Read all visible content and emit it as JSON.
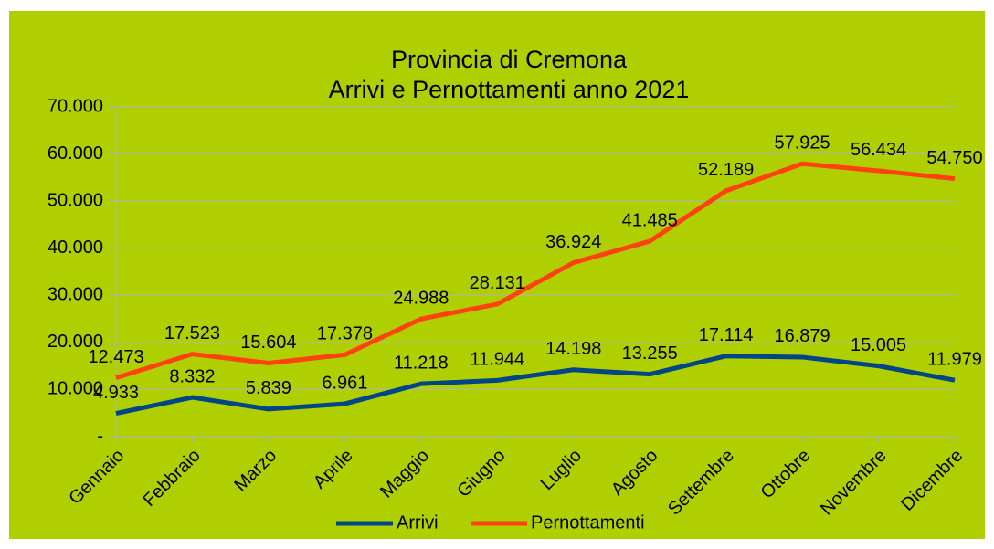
{
  "chart_data": {
    "type": "line",
    "title": "Provincia di Cremona",
    "subtitle": "Arrivi e Pernottamenti anno 2021",
    "categories": [
      "Gennaio",
      "Febbraio",
      "Marzo",
      "Aprile",
      "Maggio",
      "Giugno",
      "Luglio",
      "Agosto",
      "Settembre",
      "Ottobre",
      "Novembre",
      "Dicembre"
    ],
    "series": [
      {
        "name": "Arrivi",
        "color": "#004586",
        "values": [
          4933,
          8332,
          5839,
          6961,
          11218,
          11944,
          14198,
          13255,
          17114,
          16879,
          15005,
          11979
        ],
        "value_labels": [
          "4.933",
          "8.332",
          "5.839",
          "6.961",
          "11.218",
          "11.944",
          "14.198",
          "13.255",
          "17.114",
          "16.879",
          "15.005",
          "11.979"
        ]
      },
      {
        "name": "Pernottamenti",
        "color": "#ff420e",
        "values": [
          12473,
          17523,
          15604,
          17378,
          24988,
          28131,
          36924,
          41485,
          52189,
          57925,
          56434,
          54750
        ],
        "value_labels": [
          "12.473",
          "17.523",
          "15.604",
          "17.378",
          "24.988",
          "28.131",
          "36.924",
          "41.485",
          "52.189",
          "57.925",
          "56.434",
          "54.750"
        ]
      }
    ],
    "ylim": [
      0,
      70000
    ],
    "yticks": [
      {
        "value": 0,
        "label": "-"
      },
      {
        "value": 10000,
        "label": "10.000"
      },
      {
        "value": 20000,
        "label": "20.000"
      },
      {
        "value": 30000,
        "label": "30.000"
      },
      {
        "value": 40000,
        "label": "40.000"
      },
      {
        "value": 50000,
        "label": "50.000"
      },
      {
        "value": 60000,
        "label": "60.000"
      },
      {
        "value": 70000,
        "label": "70.000"
      }
    ],
    "grid": true,
    "legend": "bottom"
  }
}
